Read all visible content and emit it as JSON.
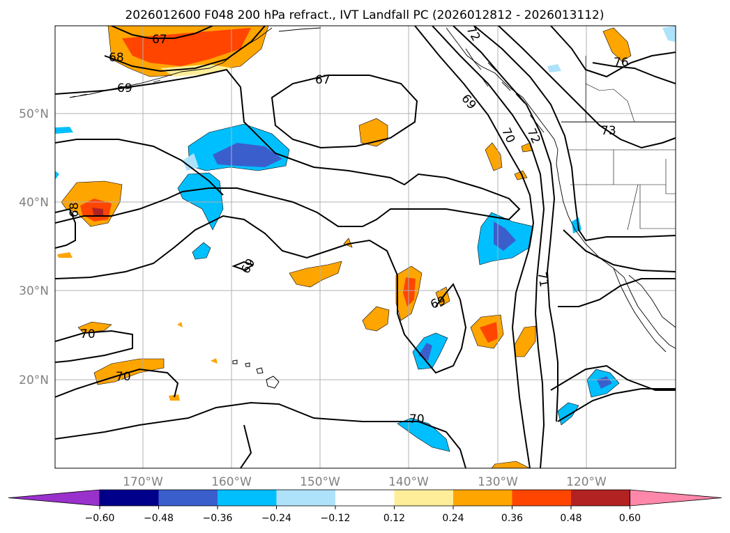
{
  "title": "2026012600 F048 200 hPa refract., IVT Landfall PC (2026012812 - 2026013112)",
  "lat_labels": [
    "50°N",
    "40°N",
    "30°N",
    "20°N"
  ],
  "lon_labels": [
    "170°W",
    "160°W",
    "150°W",
    "140°W",
    "130°W",
    "120°W"
  ],
  "contour_labels": [
    "67",
    "67",
    "68",
    "68",
    "69",
    "69",
    "69",
    "69",
    "70",
    "70",
    "70",
    "70",
    "71",
    "72",
    "72",
    "73",
    "76"
  ],
  "colorbar": {
    "ticks": [
      "−0.60",
      "−0.48",
      "−0.36",
      "−0.24",
      "−0.12",
      "0.12",
      "0.24",
      "0.36",
      "0.48",
      "0.60"
    ],
    "colors": [
      "#9932cc",
      "#00008b",
      "#3a5fcd",
      "#00bfff",
      "#aee2fa",
      "#ffffff",
      "#ffee99",
      "#ffa500",
      "#ff4500",
      "#b22222",
      "#ff88aa"
    ]
  },
  "colors": {
    "pos_weak": "#ffee99",
    "pos_mid": "#ffa500",
    "pos_strong": "#ff4500",
    "pos_max": "#b22222",
    "neg_weak": "#aee2fa",
    "neg_mid": "#00bfff",
    "neg_strong": "#3a5fcd",
    "grid": "#b0b0b0",
    "axis_text": "#808080"
  }
}
